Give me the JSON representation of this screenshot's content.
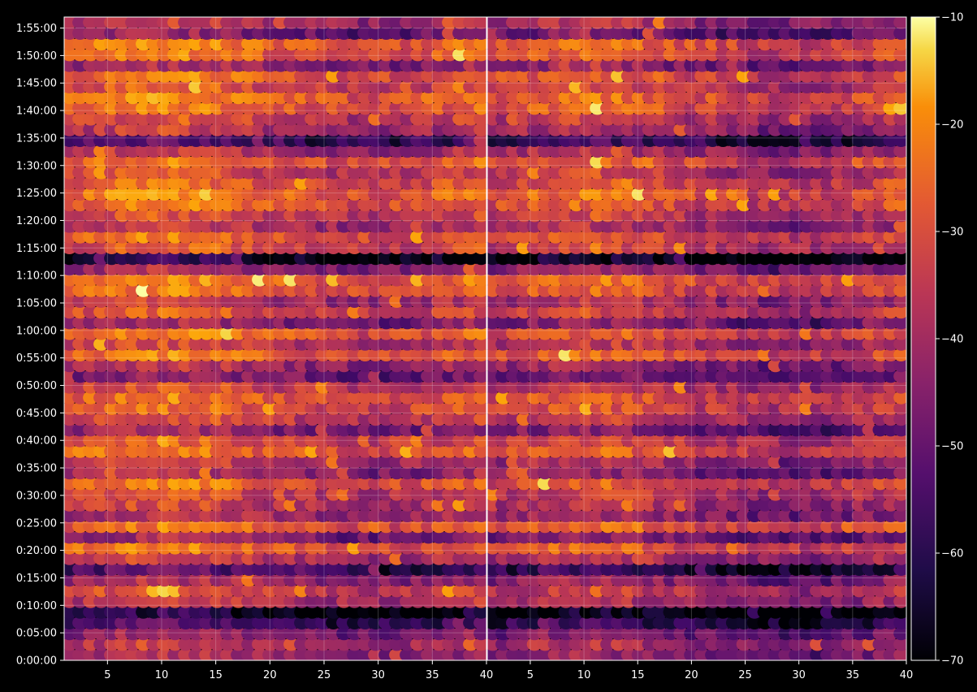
{
  "chart_data": {
    "type": "heatmap",
    "layout": "two panels side by side sharing the time axis, one colorbar on the right",
    "colormap": "inferno",
    "background": "#000000",
    "text_color": "#ffffff",
    "grid": true,
    "xlim": [
      1,
      40
    ],
    "ylim": [
      0,
      7020
    ],
    "x_ticks": [
      5,
      10,
      15,
      20,
      25,
      30,
      35,
      40
    ],
    "x_tick_labels": [
      "5",
      "10",
      "15",
      "20",
      "25",
      "30",
      "35",
      "40"
    ],
    "y_ticks": [
      0,
      300,
      600,
      900,
      1200,
      1500,
      1800,
      2100,
      2400,
      2700,
      3000,
      3300,
      3600,
      3900,
      4200,
      4500,
      4800,
      5100,
      5400,
      5700,
      6000,
      6300,
      6600,
      6900
    ],
    "y_tick_labels": [
      "0:00:00",
      "0:05:00",
      "0:10:00",
      "0:15:00",
      "0:20:00",
      "0:25:00",
      "0:30:00",
      "0:35:00",
      "0:40:00",
      "0:45:00",
      "0:50:00",
      "0:55:00",
      "1:00:00",
      "1:05:00",
      "1:10:00",
      "1:15:00",
      "1:20:00",
      "1:25:00",
      "1:30:00",
      "1:35:00",
      "1:40:00",
      "1:45:00",
      "1:50:00",
      "1:55:00"
    ],
    "colorbar": {
      "range": [
        -70,
        -10
      ],
      "ticks": [
        -70,
        -60,
        -50,
        -40,
        -30,
        -20,
        -10
      ],
      "tick_labels": [
        "−70",
        "−60",
        "−50",
        "−40",
        "−30",
        "−20",
        "−10"
      ]
    },
    "panels": [
      {
        "id": "left",
        "row_profile": [
          -44,
          -40,
          -46,
          -56,
          -64,
          -40,
          -35,
          -44,
          -56,
          -38,
          -30,
          -46,
          -30,
          -42,
          -38,
          -36,
          -30,
          -44,
          -40,
          -30,
          -34,
          -46,
          -36,
          -32,
          -30,
          -36,
          -48,
          -42,
          -30,
          -38,
          -30,
          -46,
          -34,
          -40,
          -30,
          -28,
          -44,
          -64,
          -34,
          -30,
          -40,
          -36,
          -30,
          -28,
          -32,
          -36,
          -30,
          -40,
          -56,
          -40,
          -36,
          -30,
          -28,
          -34,
          -30,
          -44,
          -30,
          -28,
          -48,
          -40
        ]
      },
      {
        "id": "right",
        "row_profile": [
          -48,
          -44,
          -50,
          -60,
          -68,
          -44,
          -40,
          -48,
          -60,
          -42,
          -34,
          -50,
          -34,
          -46,
          -42,
          -40,
          -34,
          -48,
          -44,
          -34,
          -38,
          -50,
          -40,
          -36,
          -34,
          -40,
          -52,
          -46,
          -34,
          -42,
          -34,
          -50,
          -38,
          -44,
          -34,
          -32,
          -48,
          -68,
          -38,
          -34,
          -44,
          -40,
          -34,
          -32,
          -36,
          -40,
          -34,
          -44,
          -60,
          -44,
          -40,
          -34,
          -32,
          -38,
          -34,
          -48,
          -34,
          -32,
          -52,
          -44
        ]
      }
    ]
  }
}
